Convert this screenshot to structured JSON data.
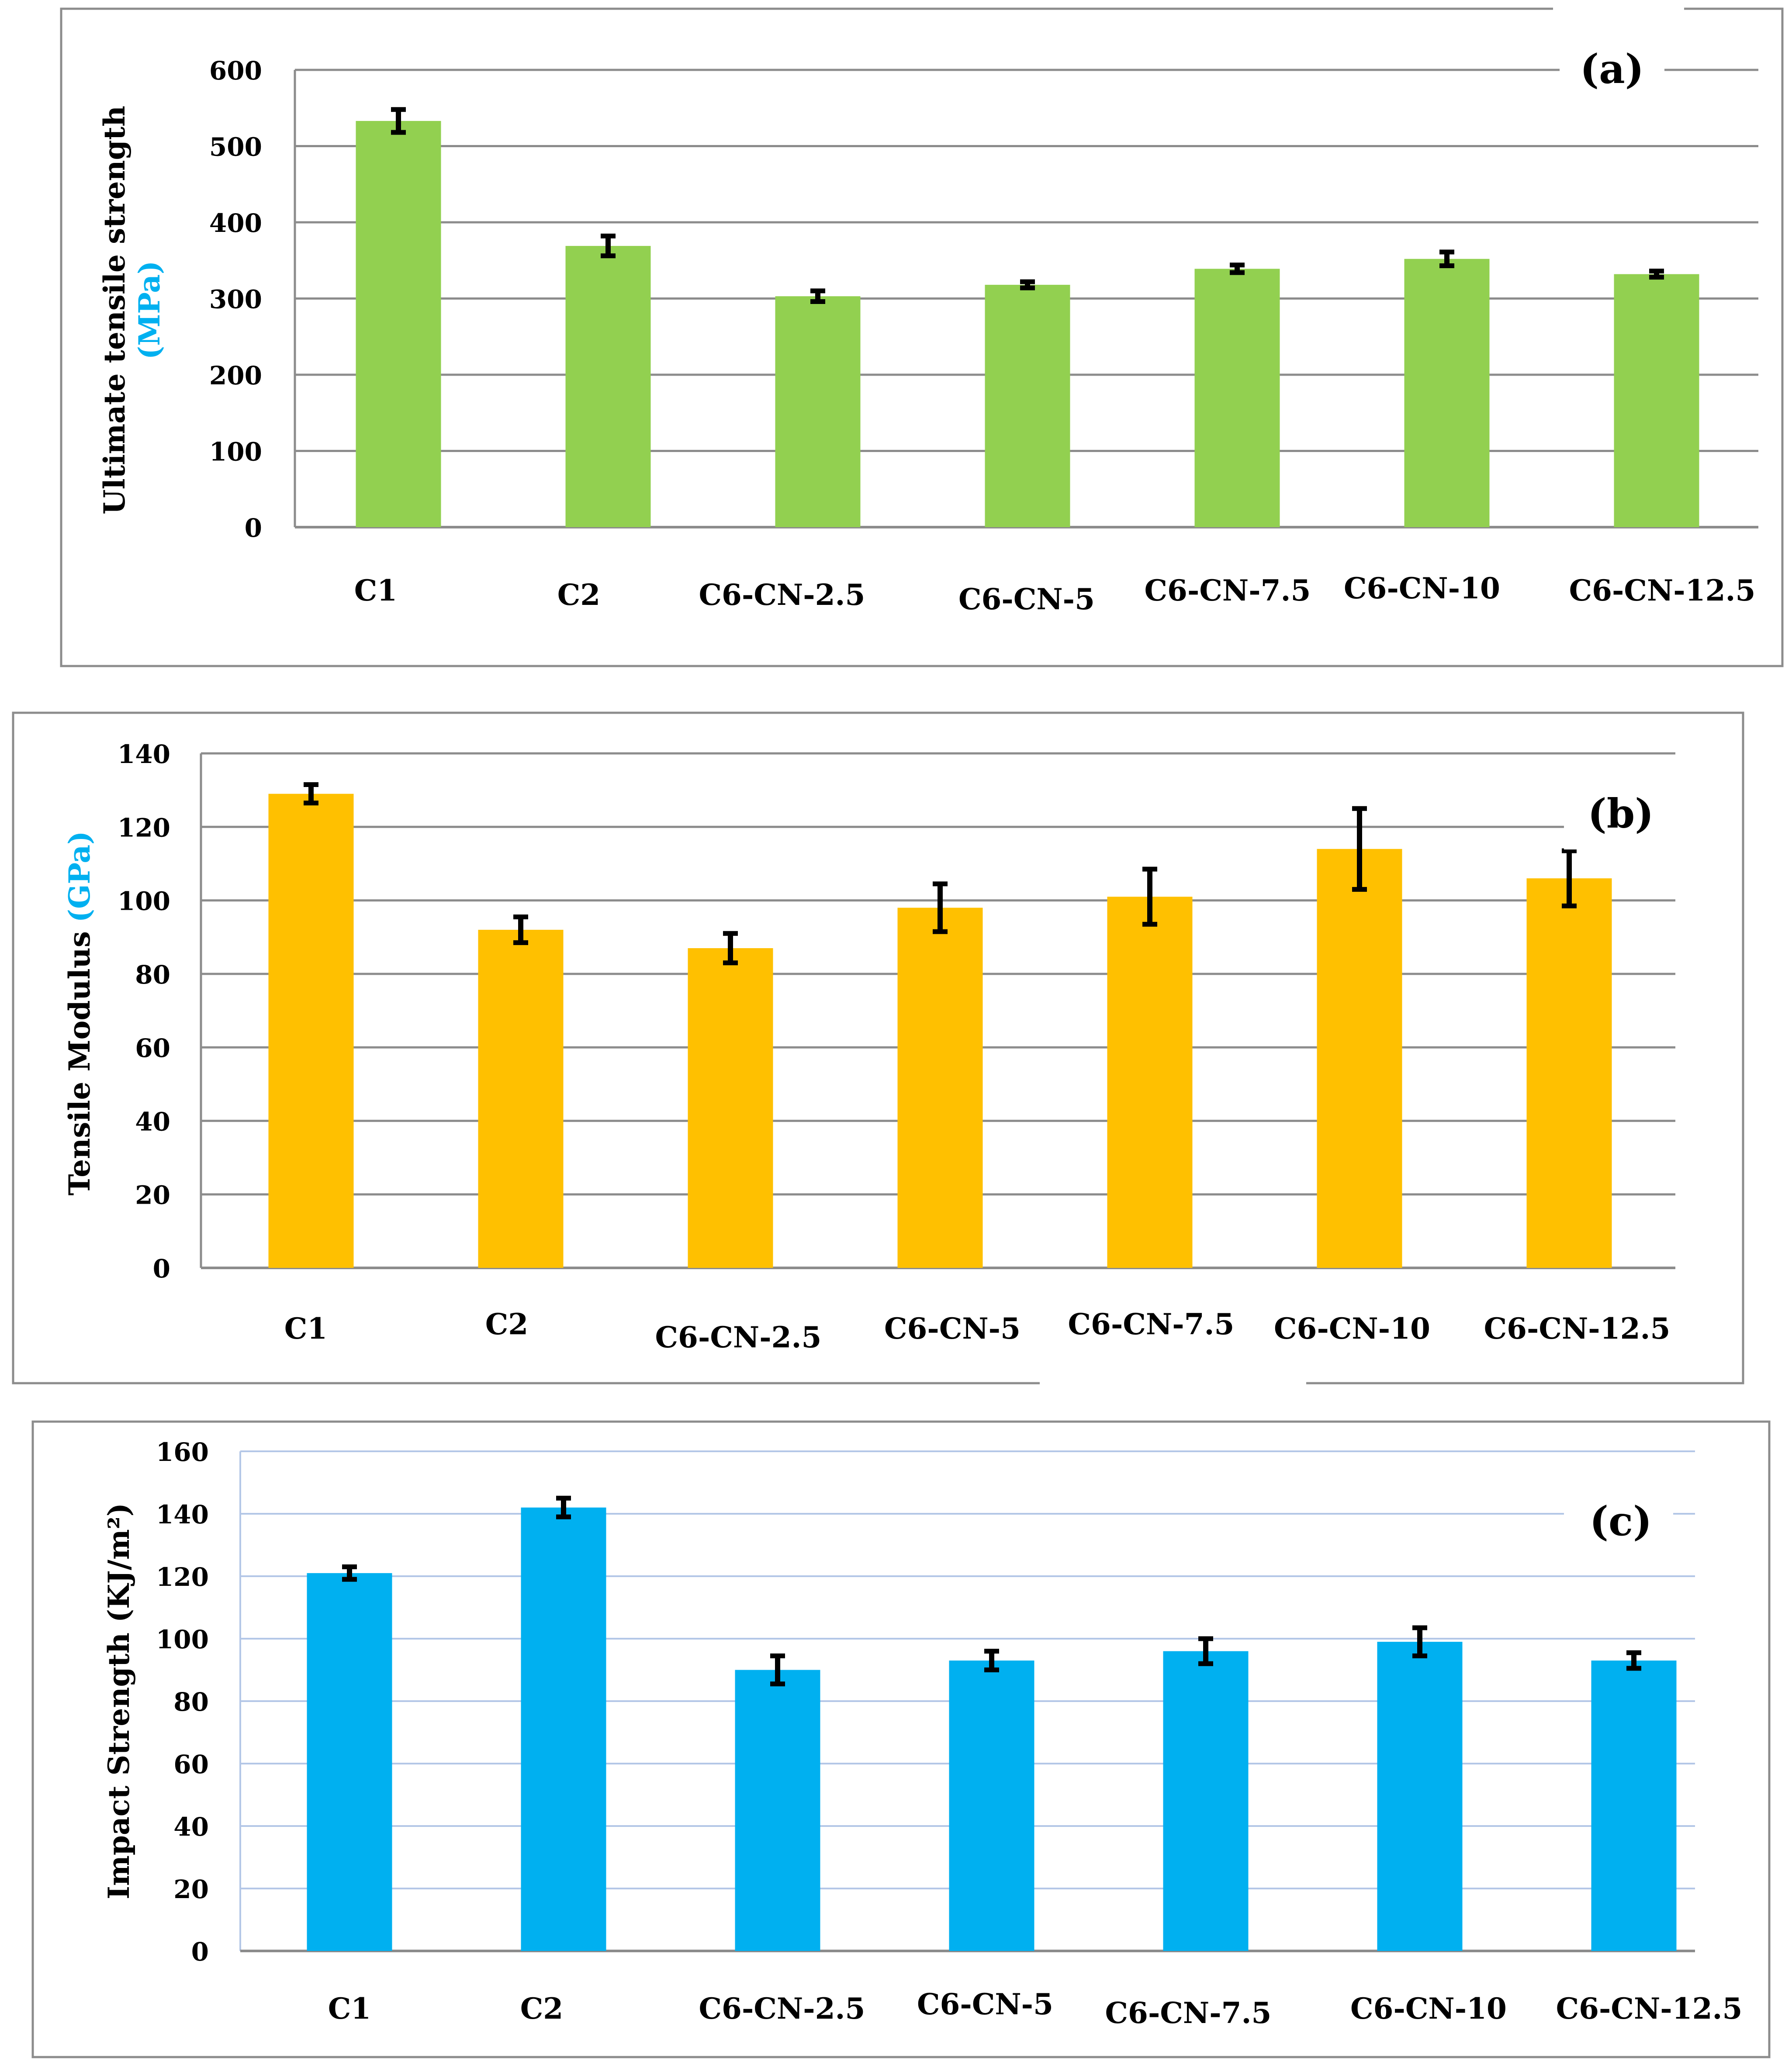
{
  "chart_data": [
    {
      "type": "bar",
      "panel": "(a)",
      "categories": [
        "C1",
        "C2",
        "C6-CN-2.5",
        "C6-CN-5",
        "C6-CN-7.5",
        "C6-CN-10",
        "C6-CN-12.5"
      ],
      "values": [
        533,
        369,
        303,
        318,
        339,
        352,
        332
      ],
      "errors": [
        15,
        13,
        7,
        4,
        5,
        9,
        4
      ],
      "ylabel": "Ultimate tensile strength",
      "ylabel_unit": "(MPa)",
      "ylim": [
        0,
        600
      ],
      "yticks": [
        0,
        100,
        200,
        300,
        400,
        500,
        600
      ],
      "bar_color": "#92d050",
      "unit_color": "#00b0f0"
    },
    {
      "type": "bar",
      "panel": "(b)",
      "categories": [
        "C1",
        "C2",
        "C6-CN-2.5",
        "C6-CN-5",
        "C6-CN-7.5",
        "C6-CN-10",
        "C6-CN-12.5"
      ],
      "values": [
        129,
        92,
        87,
        98,
        101,
        114,
        106
      ],
      "errors": [
        2.5,
        3.5,
        4,
        6.5,
        7.5,
        11,
        7.5
      ],
      "ylabel": "Tensile Modulus",
      "ylabel_unit": "(GPa)",
      "ylim": [
        0,
        140
      ],
      "yticks": [
        0,
        20,
        40,
        60,
        80,
        100,
        120,
        140
      ],
      "bar_color": "#ffc000",
      "unit_color": "#00b0f0"
    },
    {
      "type": "bar",
      "panel": "(c)",
      "categories": [
        "C1",
        "C2",
        "C6-CN-2.5",
        "C6-CN-5",
        "C6-CN-7.5",
        "C6-CN-10",
        "C6-CN-12.5"
      ],
      "values": [
        121,
        142,
        90,
        93,
        96,
        99,
        93
      ],
      "errors": [
        2,
        3,
        4.5,
        3,
        4,
        4.5,
        2.5
      ],
      "ylabel": "Impact Strength (KJ/m²)",
      "ylabel_unit": "",
      "ylim": [
        0,
        160
      ],
      "yticks": [
        0,
        20,
        40,
        60,
        80,
        100,
        120,
        140,
        160
      ],
      "bar_color": "#00b0f0",
      "unit_color": "#00b0f0"
    }
  ]
}
